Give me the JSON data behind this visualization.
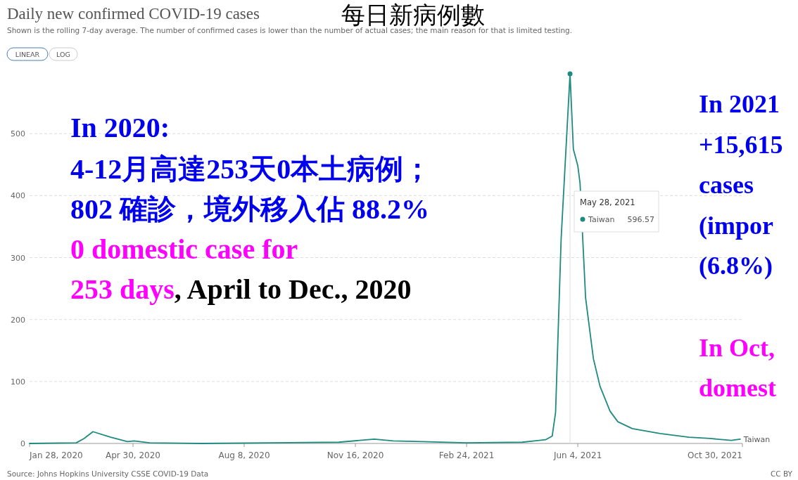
{
  "chart_data": {
    "type": "line",
    "title": "Daily new confirmed COVID-19 cases",
    "subtitle": "Shown is the rolling 7-day average. The number of confirmed cases is lower than the number of actual cases; the main reason for that is limited testing.",
    "xlim": [
      "2020-01-28",
      "2021-10-30"
    ],
    "xticks": [
      {
        "value": "2020-01-28",
        "label": "Jan 28, 2020"
      },
      {
        "value": "2020-04-30",
        "label": "Apr 30, 2020"
      },
      {
        "value": "2020-08-08",
        "label": "Aug 8, 2020"
      },
      {
        "value": "2020-11-16",
        "label": "Nov 16, 2020"
      },
      {
        "value": "2021-02-24",
        "label": "Feb 24, 2021"
      },
      {
        "value": "2021-06-04",
        "label": "Jun 4, 2021"
      },
      {
        "value": "2021-10-30",
        "label": "Oct 30, 2021"
      }
    ],
    "ylim": [
      0,
      600
    ],
    "yticks": [
      0,
      100,
      200,
      300,
      400,
      500
    ],
    "grid": "y",
    "legend": "top",
    "ref_lines": [
      {
        "axis": "x",
        "value": "2021-05-28",
        "color": "#dddddd"
      }
    ],
    "series": [
      {
        "name": "Taiwan",
        "color": "#1f8a80",
        "x": [
          "2020-01-28",
          "2020-03-10",
          "2020-03-17",
          "2020-03-25",
          "2020-04-10",
          "2020-04-25",
          "2020-05-01",
          "2020-05-15",
          "2020-07-01",
          "2020-09-01",
          "2020-11-01",
          "2020-12-03",
          "2020-12-20",
          "2021-01-15",
          "2021-02-24",
          "2021-04-15",
          "2021-05-06",
          "2021-05-12",
          "2021-05-15",
          "2021-05-20",
          "2021-05-28",
          "2021-05-31",
          "2021-06-04",
          "2021-06-06",
          "2021-06-11",
          "2021-06-18",
          "2021-06-24",
          "2021-07-03",
          "2021-07-10",
          "2021-07-23",
          "2021-08-17",
          "2021-09-12",
          "2021-10-01",
          "2021-10-20",
          "2021-10-28"
        ],
        "values": [
          0,
          1,
          8,
          19,
          10,
          3,
          4,
          1,
          0,
          1,
          2,
          7,
          4,
          3,
          1,
          2,
          6,
          12,
          50,
          330,
          596.57,
          475,
          448,
          420,
          235,
          137,
          92,
          52,
          35,
          24,
          16,
          10,
          8,
          5,
          7
        ]
      }
    ],
    "annotations": [
      "每日新病例數",
      "LINEAR",
      "LOG",
      "In 2020:",
      "4-12月高達253天0本土病例；",
      "802 確診，境外移入佔  88.2%",
      "0 domestic case for",
      "253 days",
      ", April to Dec., 2020",
      "In 2021",
      "+15,615",
      "cases",
      "(impor",
      "(6.8%)",
      "In Oct,",
      "domest",
      "Source: Johns Hopkins University CSSE COVID-19 Data",
      "CC BY",
      "May 28, 2021",
      "596.57"
    ]
  }
}
